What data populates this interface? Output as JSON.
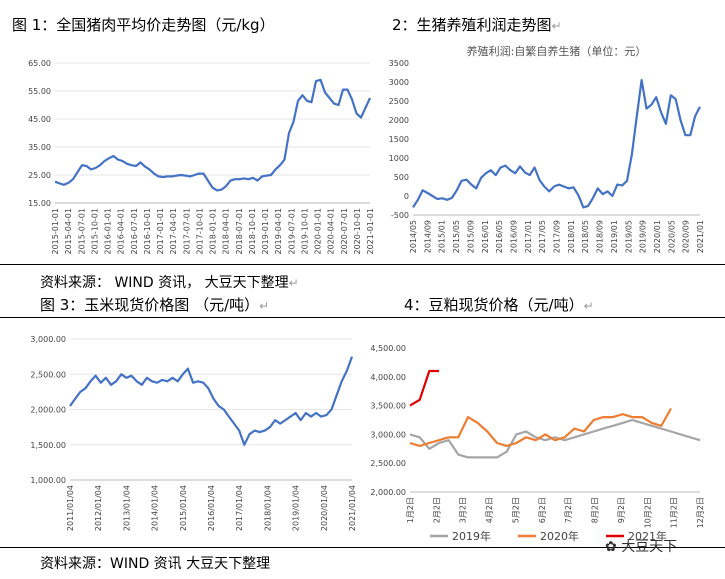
{
  "captions": {
    "fig1": "图 1：全国猪肉平均价走势图（元/kg）",
    "fig2": "2：生猪养殖利润走势图",
    "fig3": "图 3：玉米现货价格图 （元/吨）",
    "fig4": "4：豆粕现货价格（元/吨）",
    "source1": "资料来源： WIND 资讯， 大豆天下整理",
    "source2": "资料来源：WIND 资讯 大豆天下整理",
    "return_mark": "↵"
  },
  "watermark": "大豆天下",
  "colors": {
    "blue": "#4472C4",
    "gray": "#A5A5A5",
    "orange": "#ED7D31",
    "red": "#E00000"
  },
  "chart_data": [
    {
      "id": "pork",
      "type": "line",
      "title": "",
      "ylim": [
        15,
        65
      ],
      "yticks": [
        "65.00",
        "55.00",
        "45.00",
        "35.00",
        "25.00",
        "15.00"
      ],
      "xticks": [
        "2015-01-01",
        "2015-04-01",
        "2015-07-01",
        "2015-10-01",
        "2016-01-01",
        "2016-04-01",
        "2016-07-01",
        "2016-10-01",
        "2017-01-01",
        "2017-04-01",
        "2017-07-01",
        "2017-10-01",
        "2018-01-01",
        "2018-04-01",
        "2018-07-01",
        "2018-10-01",
        "2019-01-01",
        "2019-04-01",
        "2019-07-01",
        "2019-10-01",
        "2020-01-01",
        "2020-04-01",
        "2020-07-01",
        "2020-10-01",
        "2021-01-01"
      ],
      "series": [
        {
          "name": "",
          "values": [
            22.6,
            22.0,
            21.5,
            22.2,
            23.5,
            26.0,
            28.5,
            28.2,
            27.0,
            27.5,
            28.5,
            30.0,
            31.0,
            31.8,
            30.5,
            30.0,
            29.0,
            28.5,
            28.2,
            29.5,
            28.0,
            27.0,
            25.5,
            24.5,
            24.3,
            24.5,
            24.5,
            24.8,
            25.0,
            24.8,
            24.5,
            25.0,
            25.5,
            25.5,
            23.0,
            20.5,
            19.5,
            19.8,
            21.0,
            23.0,
            23.5,
            23.5,
            23.8,
            23.5,
            24.0,
            23.0,
            24.5,
            24.8,
            25.0,
            27.0,
            28.5,
            30.5,
            40.0,
            44.0,
            51.5,
            53.5,
            51.5,
            51.0,
            58.5,
            59.0,
            54.5,
            52.5,
            50.5,
            50.0,
            55.5,
            55.5,
            52.0,
            47.0,
            45.5,
            49.0,
            52.5
          ]
        }
      ]
    },
    {
      "id": "profit",
      "type": "line",
      "title": "养殖利润:自繁自养生猪（单位：元）",
      "ylim": [
        -500,
        3500
      ],
      "yticks": [
        "3500",
        "3000",
        "2500",
        "2000",
        "1500",
        "1000",
        "500",
        "0",
        "-500"
      ],
      "xticks": [
        "2014/05",
        "2014/09",
        "2015/01",
        "2015/05",
        "2015/09",
        "2016/01",
        "2016/05",
        "2016/09",
        "2017/01",
        "2017/05",
        "2017/09",
        "2018/01",
        "2018/05",
        "2018/09",
        "2019/01",
        "2019/05",
        "2019/09",
        "2020/01",
        "2020/05",
        "2020/09",
        "2021/01"
      ],
      "series": [
        {
          "name": "",
          "values": [
            -300,
            -100,
            150,
            80,
            0,
            -80,
            -60,
            -100,
            -50,
            150,
            400,
            430,
            300,
            200,
            480,
            600,
            680,
            550,
            750,
            800,
            680,
            600,
            780,
            620,
            550,
            750,
            420,
            250,
            120,
            250,
            300,
            250,
            200,
            230,
            20,
            -300,
            -260,
            -50,
            200,
            50,
            120,
            0,
            300,
            280,
            400,
            1100,
            2100,
            3050,
            2300,
            2400,
            2600,
            2200,
            1900,
            2650,
            2550,
            2000,
            1600,
            1600,
            2100,
            2350
          ]
        }
      ]
    },
    {
      "id": "corn",
      "type": "line",
      "title": "",
      "ylim": [
        1000,
        3000
      ],
      "yticks": [
        "3,000.00",
        "2,500.00",
        "2,000.00",
        "1,500.00",
        "1,000.00"
      ],
      "xticks": [
        "2011/01/04",
        "2012/01/04",
        "2013/01/04",
        "2014/01/04",
        "2015/01/04",
        "2016/01/04",
        "2017/01/04",
        "2018/01/04",
        "2019/01/04",
        "2020/01/04",
        "2021/01/04"
      ],
      "series": [
        {
          "name": "",
          "values": [
            2050,
            2150,
            2250,
            2300,
            2400,
            2480,
            2380,
            2450,
            2350,
            2400,
            2500,
            2450,
            2480,
            2400,
            2350,
            2450,
            2400,
            2380,
            2420,
            2400,
            2450,
            2400,
            2500,
            2580,
            2380,
            2400,
            2380,
            2300,
            2150,
            2050,
            2000,
            1900,
            1800,
            1700,
            1500,
            1650,
            1700,
            1680,
            1700,
            1750,
            1850,
            1800,
            1850,
            1900,
            1950,
            1850,
            1950,
            1900,
            1950,
            1900,
            1920,
            2000,
            2200,
            2400,
            2550,
            2750
          ]
        }
      ]
    },
    {
      "id": "meal",
      "type": "line",
      "title": "",
      "ylim": [
        2000,
        4500
      ],
      "yticks": [
        "4,500.00",
        "4,000.00",
        "3,500.00",
        "3,000.00",
        "2,500.00",
        "2,000.00"
      ],
      "xticks": [
        "1月2日",
        "2月2日",
        "3月2日",
        "4月2日",
        "5月2日",
        "6月2日",
        "7月2日",
        "8月2日",
        "9月2日",
        "10月2日",
        "11月2日",
        "12月2日"
      ],
      "series": [
        {
          "name": "2019年",
          "values": [
            3000,
            2950,
            2750,
            2850,
            2900,
            2650,
            2600,
            2600,
            2600,
            2600,
            2700,
            3000,
            3050,
            2950,
            2900,
            2950,
            2900,
            2950,
            3000,
            3050,
            3100,
            3150,
            3200,
            3250,
            3200,
            3150,
            3100,
            3050,
            3000,
            2950,
            2900
          ]
        },
        {
          "name": "2020年",
          "values": [
            2850,
            2800,
            2850,
            2900,
            2950,
            2950,
            3300,
            3200,
            3050,
            2850,
            2800,
            2850,
            2950,
            2900,
            3000,
            2900,
            2950,
            3100,
            3050,
            3250,
            3300,
            3300,
            3350,
            3300,
            3300,
            3200,
            3150,
            3450
          ]
        },
        {
          "name": "2021年",
          "values": [
            3500,
            3600,
            4100,
            4100
          ]
        }
      ]
    }
  ]
}
